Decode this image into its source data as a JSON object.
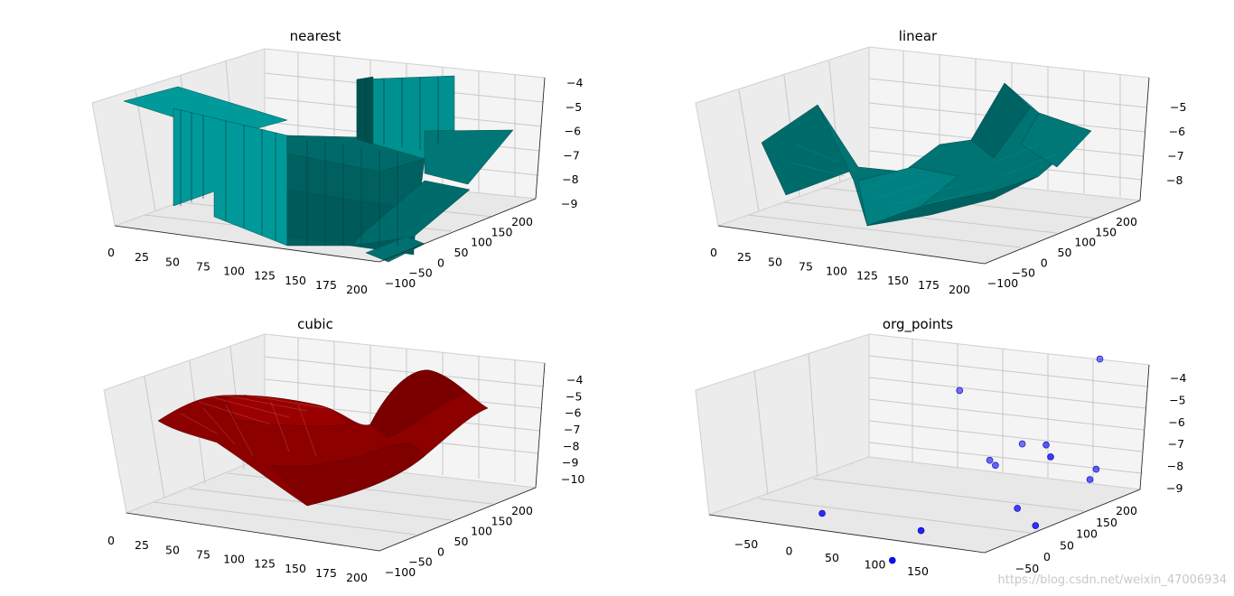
{
  "figure": {
    "watermark": "https://blog.csdn.net/weixin_47006934",
    "colors": {
      "pane": "#f2f2f2",
      "pane_dark": "#e6e6e6",
      "grid": "#c8c8c8",
      "teal": "#007b7b",
      "teal_light": "#009d9d",
      "red": "#960000",
      "blue": "#0000ff"
    }
  },
  "chart_data": [
    {
      "type": "surface3d",
      "title": "nearest",
      "xticks": [
        "0",
        "25",
        "50",
        "75",
        "100",
        "125",
        "150",
        "175",
        "200"
      ],
      "yticks": [
        "−100",
        "−50",
        "0",
        "50",
        "100",
        "150",
        "200"
      ],
      "zticks": [
        "−4",
        "−5",
        "−6",
        "−7",
        "−8",
        "−9"
      ],
      "interpolation": "nearest",
      "color": "teal"
    },
    {
      "type": "surface3d",
      "title": "linear",
      "xticks": [
        "0",
        "25",
        "50",
        "75",
        "100",
        "125",
        "150",
        "175",
        "200"
      ],
      "yticks": [
        "−100",
        "−50",
        "0",
        "50",
        "100",
        "150",
        "200"
      ],
      "zticks": [
        "−5",
        "−6",
        "−7",
        "−8"
      ],
      "interpolation": "linear",
      "color": "teal"
    },
    {
      "type": "surface3d",
      "title": "cubic",
      "xticks": [
        "0",
        "25",
        "50",
        "75",
        "100",
        "125",
        "150",
        "175",
        "200"
      ],
      "yticks": [
        "−100",
        "−50",
        "0",
        "50",
        "100",
        "150",
        "200"
      ],
      "zticks": [
        "−4",
        "−5",
        "−6",
        "−7",
        "−8",
        "−9",
        "−10"
      ],
      "interpolation": "cubic",
      "color": "red"
    },
    {
      "type": "scatter3d",
      "title": "org_points",
      "xticks": [
        "−50",
        "0",
        "50",
        "100",
        "150"
      ],
      "yticks": [
        "−50",
        "0",
        "50",
        "100",
        "150",
        "200"
      ],
      "zticks": [
        "−4",
        "−5",
        "−6",
        "−7",
        "−8",
        "−9"
      ],
      "points": [
        {
          "x": -40,
          "y": 170,
          "z": -5.7
        },
        {
          "x": 120,
          "y": 170,
          "z": -3.6
        },
        {
          "x": 175,
          "y": 40,
          "z": -5.6
        },
        {
          "x": 110,
          "y": 110,
          "z": -6.4
        },
        {
          "x": 40,
          "y": 160,
          "z": -7.4
        },
        {
          "x": 150,
          "y": 130,
          "z": -7.5
        },
        {
          "x": 160,
          "y": 110,
          "z": -7.6
        },
        {
          "x": 20,
          "y": 140,
          "z": -7.9
        },
        {
          "x": 35,
          "y": 130,
          "z": -7.9
        },
        {
          "x": 120,
          "y": 60,
          "z": -8.3
        },
        {
          "x": 175,
          "y": 20,
          "z": -8.2
        },
        {
          "x": -60,
          "y": 10,
          "z": -8.7
        },
        {
          "x": 70,
          "y": -10,
          "z": -8.5
        },
        {
          "x": 80,
          "y": -60,
          "z": -9.0
        }
      ]
    }
  ]
}
